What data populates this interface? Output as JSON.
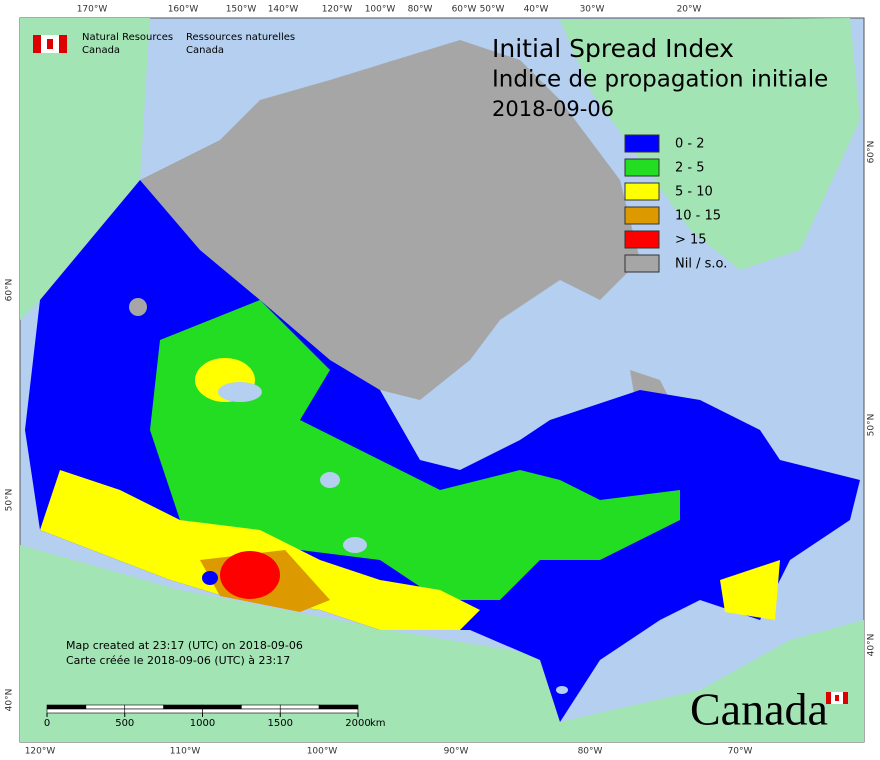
{
  "header": {
    "agency_en": [
      "Natural Resources",
      "Canada"
    ],
    "agency_fr": [
      "Ressources naturelles",
      "Canada"
    ]
  },
  "title": {
    "line1": "Initial Spread Index",
    "line2": "Indice de propagation initiale",
    "date": "2018-09-06"
  },
  "legend": [
    {
      "label": "0 - 2",
      "color": "#0000ff"
    },
    {
      "label": "2 - 5",
      "color": "#22dd22"
    },
    {
      "label": "5 - 10",
      "color": "#ffff00"
    },
    {
      "label": "10 - 15",
      "color": "#dd9900"
    },
    {
      "label": "> 15",
      "color": "#ff0000"
    },
    {
      "label": "Nil / s.o.",
      "color": "#a6a6a6"
    }
  ],
  "graticule": {
    "top": [
      "170°W",
      "160°W",
      "150°W",
      "140°W",
      "120°W",
      "100°W",
      "80°W",
      "60°W",
      "50°W",
      "40°W",
      "30°W",
      "20°W"
    ],
    "bottom": [
      "120°W",
      "110°W",
      "100°W",
      "90°W",
      "80°W",
      "70°W"
    ],
    "left": [
      "60°N",
      "50°N",
      "40°N"
    ],
    "right": [
      "60°N",
      "50°N",
      "40°N"
    ]
  },
  "notes": [
    "Map created at 23:17 (UTC) on 2018-09-06",
    "Carte créée le 2018-09-06 (UTC) à 23:17"
  ],
  "scale_bar": {
    "ticks": [
      0,
      500,
      1000,
      1500,
      2000
    ],
    "unit": "km"
  },
  "wordmark": "Canada"
}
